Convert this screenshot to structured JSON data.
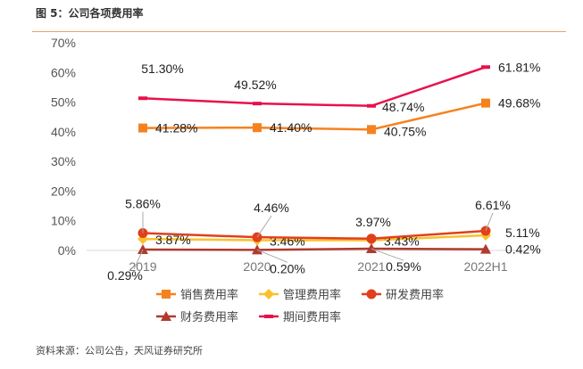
{
  "header": {
    "title": "图 5：公司各项费用率"
  },
  "footer": {
    "source": "资料来源：公司公告，天风证券研究所"
  },
  "chart_data": {
    "type": "line",
    "title": "公司各项费用率",
    "categories": [
      "2019",
      "2020",
      "2021",
      "2022H1"
    ],
    "yticks": [
      "0%",
      "10%",
      "20%",
      "30%",
      "40%",
      "50%",
      "60%",
      "70%"
    ],
    "ylim": [
      0,
      70
    ],
    "legend_position": "bottom",
    "series": [
      {
        "name": "销售费用率",
        "values": [
          41.28,
          41.4,
          40.75,
          49.68
        ],
        "labels": [
          "41.28%",
          "41.40%",
          "40.75%",
          "49.68%"
        ],
        "color": "#F5821F",
        "marker": "square"
      },
      {
        "name": "管理费用率",
        "values": [
          3.87,
          3.46,
          3.43,
          5.11
        ],
        "labels": [
          "3.87%",
          "3.46%",
          "3.43%",
          "5.11%"
        ],
        "color": "#FBC02D",
        "marker": "diamond"
      },
      {
        "name": "研发费用率",
        "values": [
          5.86,
          4.46,
          3.97,
          6.61
        ],
        "labels": [
          "5.86%",
          "4.46%",
          "3.97%",
          "6.61%"
        ],
        "color": "#E0401A",
        "marker": "circle"
      },
      {
        "name": "财务费用率",
        "values": [
          0.29,
          0.2,
          0.59,
          0.42
        ],
        "labels": [
          "0.29%",
          "0.20%",
          "0.59%",
          "0.42%"
        ],
        "color": "#B03A2E",
        "marker": "triangle"
      },
      {
        "name": "期间费用率",
        "values": [
          51.3,
          49.52,
          48.74,
          61.81
        ],
        "labels": [
          "51.30%",
          "49.52%",
          "48.74%",
          "61.81%"
        ],
        "color": "#E8114A",
        "marker": "dash"
      }
    ]
  }
}
